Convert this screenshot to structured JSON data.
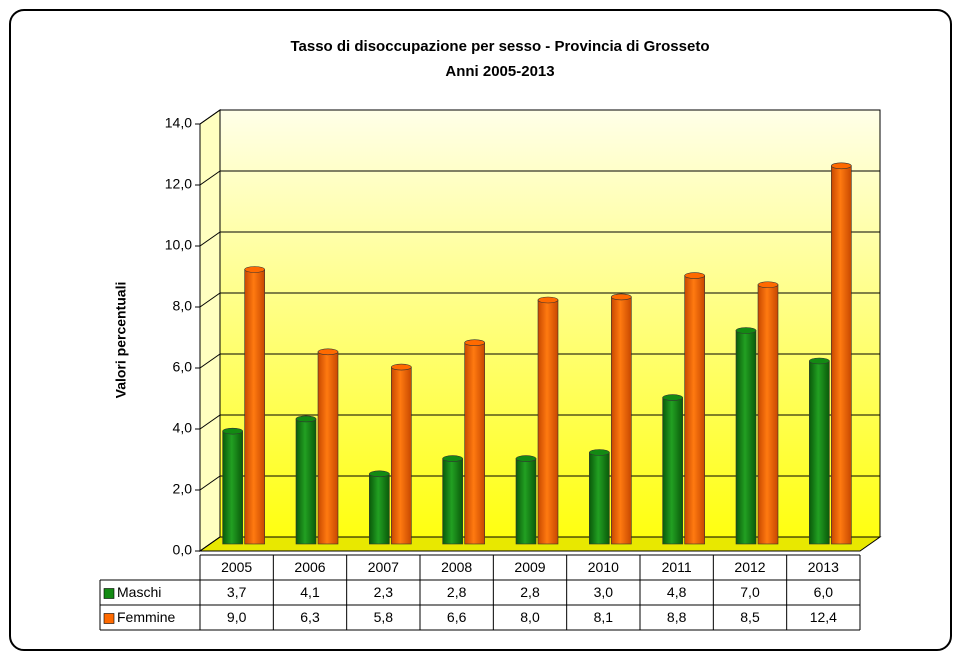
{
  "chart_data": {
    "type": "bar3d",
    "title": "Tasso di disoccupazione per sesso - Provincia di Grosseto",
    "subtitle": "Anni 2005-2013",
    "y_label": "Valori percentuali",
    "categories": [
      "2005",
      "2006",
      "2007",
      "2008",
      "2009",
      "2010",
      "2011",
      "2012",
      "2013"
    ],
    "series": [
      {
        "name": "Maschi",
        "color": "#138a13",
        "values": [
          3.7,
          4.1,
          2.3,
          2.8,
          2.8,
          3.0,
          4.8,
          7.0,
          6.0
        ],
        "value_labels": [
          "3,7",
          "4,1",
          "2,3",
          "2,8",
          "2,8",
          "3,0",
          "4,8",
          "7,0",
          "6,0"
        ]
      },
      {
        "name": "Femmine",
        "color": "#ff6a00",
        "values": [
          9.0,
          6.3,
          5.8,
          6.6,
          8.0,
          8.1,
          8.8,
          8.5,
          12.4
        ],
        "value_labels": [
          "9,0",
          "6,3",
          "5,8",
          "6,6",
          "8,0",
          "8,1",
          "8,8",
          "8,5",
          "12,4"
        ]
      }
    ],
    "ylim": [
      0,
      14
    ],
    "yticks": [
      {
        "value": 0,
        "label": "0,0"
      },
      {
        "value": 2,
        "label": "2,0"
      },
      {
        "value": 4,
        "label": "4,0"
      },
      {
        "value": 6,
        "label": "6,0"
      },
      {
        "value": 8,
        "label": "8,0"
      },
      {
        "value": 10,
        "label": "10,0"
      },
      {
        "value": 12,
        "label": "12,0"
      },
      {
        "value": 14,
        "label": "14,0"
      }
    ],
    "grid": true
  }
}
